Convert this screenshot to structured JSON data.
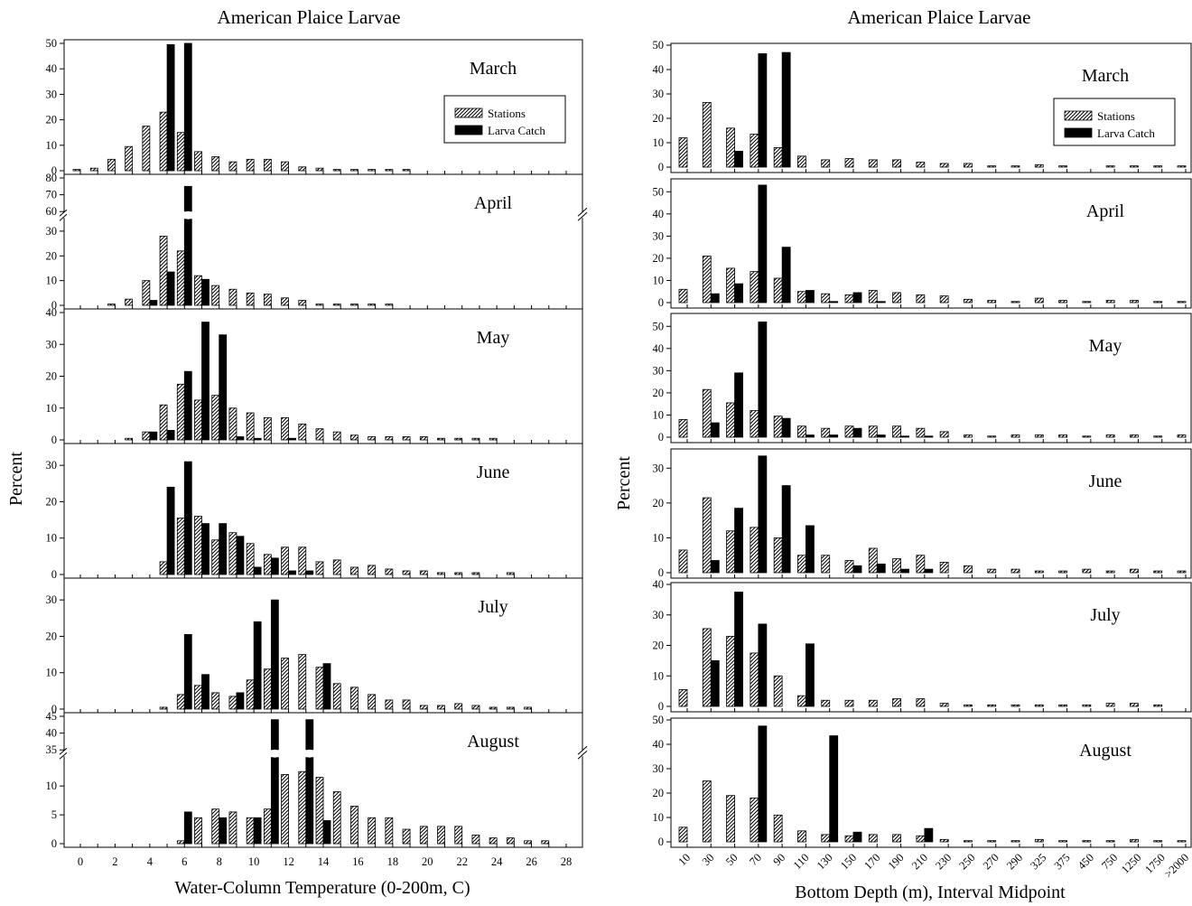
{
  "legend": {
    "stations": "Stations",
    "larva_catch": "Larva Catch"
  },
  "chart_data": [
    {
      "type": "bar",
      "title": "American Plaice Larvae",
      "xlabel": "Water-Column Temperature (0-200m, C)",
      "ylabel": "Percent",
      "x": [
        0,
        1,
        2,
        3,
        4,
        5,
        6,
        7,
        8,
        9,
        10,
        11,
        12,
        13,
        14,
        15,
        16,
        17,
        18,
        19,
        20,
        21,
        22,
        23,
        24,
        25,
        26,
        27,
        28
      ],
      "x_tick_labels": [
        "0",
        "2",
        "4",
        "6",
        "8",
        "10",
        "12",
        "14",
        "16",
        "18",
        "20",
        "22",
        "24",
        "26",
        "28"
      ],
      "series_names": [
        "Stations",
        "Larva Catch"
      ],
      "panels": [
        {
          "month": "March",
          "ylim": [
            0,
            50
          ],
          "yticks": [
            0,
            10,
            20,
            30,
            40,
            50
          ],
          "legend": true,
          "stations": [
            0.5,
            1,
            4.5,
            9.5,
            17.5,
            23,
            15,
            7.5,
            5.5,
            3.5,
            4.5,
            4.5,
            3.5,
            1.5,
            1,
            0.5,
            0.5,
            0.5,
            0.5,
            0.5,
            0,
            0,
            0,
            0,
            0,
            0,
            0,
            0,
            0
          ],
          "larva": [
            0,
            0,
            0,
            0,
            0,
            49.5,
            51,
            0,
            0,
            0,
            0,
            0,
            0,
            0,
            0,
            0,
            0,
            0,
            0,
            0,
            0,
            0,
            0,
            0,
            0,
            0,
            0,
            0,
            0
          ]
        },
        {
          "month": "April",
          "ylim": [
            0,
            80
          ],
          "yticks": [
            0,
            10,
            20,
            30,
            60,
            70,
            80
          ],
          "break": [
            35,
            60
          ],
          "stations": [
            0,
            0,
            0.5,
            2.5,
            10,
            28,
            22,
            12,
            8,
            6.5,
            5,
            4.5,
            3,
            2,
            0.5,
            0.5,
            0.5,
            0.5,
            0.5,
            0,
            0,
            0,
            0,
            0,
            0,
            0,
            0,
            0,
            0
          ],
          "larva": [
            0,
            0,
            0,
            0,
            2,
            13.5,
            75,
            10.5,
            0,
            0,
            0,
            0,
            0,
            0,
            0,
            0,
            0,
            0,
            0,
            0,
            0,
            0,
            0,
            0,
            0,
            0,
            0,
            0,
            0
          ]
        },
        {
          "month": "May",
          "ylim": [
            0,
            40
          ],
          "yticks": [
            0,
            10,
            20,
            30,
            40
          ],
          "stations": [
            0,
            0,
            0,
            0.5,
            2.5,
            11,
            17.5,
            12.5,
            14,
            10,
            8.5,
            7,
            7,
            5,
            3.5,
            2.5,
            1.5,
            1,
            1,
            1,
            1,
            0.5,
            0.5,
            0.5,
            0.5,
            0,
            0,
            0,
            0
          ],
          "larva": [
            0,
            0,
            0,
            0,
            2.5,
            3,
            21.5,
            37,
            33,
            1,
            0.5,
            0,
            0.5,
            0,
            0,
            0,
            0,
            0,
            0,
            0,
            0,
            0,
            0,
            0,
            0,
            0,
            0,
            0,
            0
          ]
        },
        {
          "month": "June",
          "ylim": [
            0,
            35
          ],
          "yticks": [
            0,
            10,
            20,
            30
          ],
          "stations": [
            0,
            0,
            0,
            0,
            0,
            3.5,
            15.5,
            16,
            9.5,
            11.5,
            8.5,
            5.5,
            7.5,
            7.5,
            3.5,
            4,
            2,
            2.5,
            1.5,
            1,
            1,
            0.5,
            0.5,
            0.5,
            0,
            0.5,
            0,
            0,
            0
          ],
          "larva": [
            0,
            0,
            0,
            0,
            0,
            24,
            31,
            14,
            14,
            10.5,
            2,
            4.5,
            1,
            1,
            0,
            0,
            0,
            0,
            0,
            0,
            0,
            0,
            0,
            0,
            0,
            0,
            0,
            0,
            0
          ]
        },
        {
          "month": "July",
          "ylim": [
            0,
            35
          ],
          "yticks": [
            0,
            10,
            20,
            30
          ],
          "stations": [
            0,
            0,
            0,
            0,
            0,
            0.5,
            4,
            6.5,
            4.5,
            3.5,
            8,
            11,
            14,
            15,
            11.5,
            7,
            6,
            4,
            2.5,
            2.5,
            1,
            1,
            1.5,
            1,
            0.5,
            0.5,
            0.5,
            0,
            0
          ],
          "larva": [
            0,
            0,
            0,
            0,
            0,
            0,
            20.5,
            9.5,
            0,
            4.5,
            24,
            30,
            0,
            0,
            12.5,
            0,
            0,
            0,
            0,
            0,
            0,
            0,
            0,
            0,
            0,
            0,
            0,
            0,
            0
          ]
        },
        {
          "month": "August",
          "ylim": [
            0,
            45
          ],
          "yticks": [
            0,
            5,
            10,
            35,
            40,
            45
          ],
          "break": [
            15,
            35
          ],
          "stations": [
            0,
            0,
            0,
            0,
            0,
            0,
            0.5,
            4.5,
            6,
            5.5,
            4.5,
            6,
            12,
            12.5,
            11.5,
            9,
            6.5,
            4.5,
            4.5,
            2.5,
            3,
            3,
            3,
            1.5,
            1,
            1,
            0.5,
            0.5,
            0
          ],
          "larva": [
            0,
            0,
            0,
            0,
            0,
            0,
            5.5,
            0,
            4.5,
            0,
            4.5,
            44,
            0,
            44,
            4,
            0,
            0,
            0,
            0,
            0,
            0,
            0,
            0,
            0,
            0,
            0,
            0,
            0,
            0
          ]
        }
      ]
    },
    {
      "type": "bar",
      "title": "American Plaice Larvae",
      "xlabel": "Bottom Depth (m), Interval Midpoint",
      "ylabel": "Percent",
      "categories": [
        "10",
        "30",
        "50",
        "70",
        "90",
        "110",
        "130",
        "150",
        "170",
        "190",
        "210",
        "230",
        "250",
        "270",
        "290",
        "325",
        "375",
        "450",
        "750",
        "1250",
        "1750",
        ">2000"
      ],
      "series_names": [
        "Stations",
        "Larva Catch"
      ],
      "panels": [
        {
          "month": "March",
          "ylim": [
            0,
            50
          ],
          "yticks": [
            0,
            10,
            20,
            30,
            40,
            50
          ],
          "legend": true,
          "stations": [
            12,
            26.5,
            16,
            13.5,
            8,
            4.5,
            3,
            3.5,
            3,
            3,
            2,
            1.5,
            1.5,
            0.5,
            0.5,
            1,
            0.5,
            0,
            0.5,
            0.5,
            0.5,
            0.5
          ],
          "larva": [
            0,
            0,
            6.5,
            46.5,
            47,
            0,
            0,
            0,
            0,
            0,
            0,
            0,
            0,
            0,
            0,
            0,
            0,
            0,
            0,
            0,
            0,
            0
          ]
        },
        {
          "month": "April",
          "ylim": [
            0,
            55
          ],
          "yticks": [
            0,
            10,
            20,
            30,
            40,
            50
          ],
          "stations": [
            6,
            21,
            15.5,
            14,
            11,
            5,
            4,
            3.5,
            5.5,
            4.5,
            3.5,
            3,
            1.5,
            1,
            0.5,
            2,
            1,
            0.5,
            1,
            1,
            0.5,
            0.5
          ],
          "larva": [
            0,
            4,
            8.5,
            53,
            25,
            5.5,
            0.5,
            4.5,
            0.5,
            0,
            0,
            0,
            0,
            0,
            0,
            0,
            0,
            0,
            0,
            0,
            0,
            0
          ]
        },
        {
          "month": "May",
          "ylim": [
            0,
            55
          ],
          "yticks": [
            0,
            10,
            20,
            30,
            40,
            50
          ],
          "stations": [
            8,
            21.5,
            15.5,
            12,
            9.5,
            5,
            4,
            5,
            5,
            5,
            4,
            2.5,
            1,
            0.5,
            1,
            1,
            1,
            0.5,
            1,
            1,
            0.5,
            1
          ],
          "larva": [
            0,
            6.5,
            29,
            52,
            8.5,
            1,
            1,
            4,
            1,
            0.5,
            0.5,
            0,
            0,
            0,
            0,
            0,
            0,
            0,
            0,
            0,
            0,
            0
          ]
        },
        {
          "month": "June",
          "ylim": [
            0,
            35
          ],
          "yticks": [
            0,
            10,
            20,
            30
          ],
          "stations": [
            6.5,
            21.5,
            12,
            13,
            10,
            5,
            5,
            3.5,
            7,
            4,
            5,
            3,
            2,
            1,
            1,
            0.5,
            0.5,
            1,
            0.5,
            1,
            0.5,
            0.5
          ],
          "larva": [
            0,
            3.5,
            18.5,
            33.5,
            25,
            13.5,
            0,
            2,
            2.5,
            1,
            1,
            0,
            0,
            0,
            0,
            0,
            0,
            0,
            0,
            0,
            0,
            0
          ]
        },
        {
          "month": "July",
          "ylim": [
            0,
            40
          ],
          "yticks": [
            0,
            10,
            20,
            30,
            40
          ],
          "stations": [
            5.5,
            25.5,
            23,
            17.5,
            10,
            3.5,
            2,
            2,
            2,
            2.5,
            2.5,
            1,
            0.5,
            0.5,
            0.5,
            0.5,
            0.5,
            0.5,
            1,
            1,
            0.5,
            0
          ],
          "larva": [
            0,
            15,
            37.5,
            27,
            0,
            20.5,
            0,
            0,
            0,
            0,
            0,
            0,
            0,
            0,
            0,
            0,
            0,
            0,
            0,
            0,
            0,
            0
          ]
        },
        {
          "month": "August",
          "ylim": [
            0,
            50
          ],
          "yticks": [
            0,
            10,
            20,
            30,
            40,
            50
          ],
          "stations": [
            6,
            25,
            19,
            18,
            11,
            4.5,
            3,
            2.5,
            3,
            3,
            2.5,
            1,
            0.5,
            0.5,
            0.5,
            1,
            0.5,
            0.5,
            0.5,
            1,
            0.5,
            0.5
          ],
          "larva": [
            0,
            0,
            0,
            47.5,
            0,
            0,
            43.5,
            4,
            0,
            0,
            5.5,
            0,
            0,
            0,
            0,
            0,
            0,
            0,
            0,
            0,
            0,
            0
          ]
        }
      ]
    }
  ]
}
